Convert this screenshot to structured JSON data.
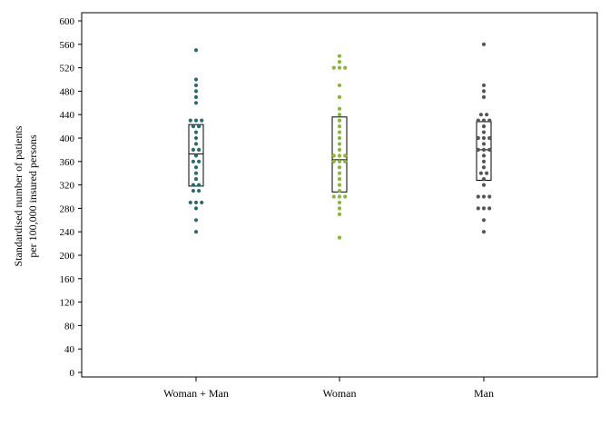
{
  "chart_data": {
    "type": "scatter",
    "subtype": "dot-plot-with-boxplot",
    "title": "",
    "xlabel": "",
    "ylabel_lines": [
      "Standardised number of patients",
      "per 100,000 insured persons"
    ],
    "ylim": [
      0,
      600
    ],
    "y_ticks": [
      0,
      40,
      80,
      120,
      160,
      200,
      240,
      280,
      320,
      360,
      400,
      440,
      480,
      520,
      560,
      600
    ],
    "grid": false,
    "categories": [
      "Woman + Man",
      "Woman",
      "Man"
    ],
    "series": [
      {
        "category": "Woman + Man",
        "color": "#2a6b71",
        "box": {
          "q1": 318,
          "median": 373,
          "q3": 423
        },
        "points": [
          550,
          500,
          490,
          480,
          470,
          460,
          430,
          430,
          430,
          420,
          420,
          410,
          400,
          390,
          380,
          380,
          370,
          360,
          360,
          350,
          340,
          330,
          320,
          320,
          310,
          310,
          290,
          290,
          290,
          280,
          260,
          240
        ]
      },
      {
        "category": "Woman",
        "color": "#86b832",
        "box": {
          "q1": 308,
          "median": 363,
          "q3": 436
        },
        "points": [
          540,
          530,
          520,
          520,
          520,
          490,
          470,
          450,
          440,
          430,
          420,
          410,
          400,
          390,
          380,
          370,
          370,
          370,
          360,
          360,
          360,
          350,
          340,
          330,
          320,
          310,
          300,
          300,
          300,
          290,
          280,
          270,
          230
        ]
      },
      {
        "category": "Man",
        "color": "#555555",
        "box": {
          "q1": 328,
          "median": 380,
          "q3": 428
        },
        "points": [
          560,
          490,
          480,
          470,
          440,
          440,
          430,
          430,
          430,
          420,
          410,
          400,
          400,
          400,
          390,
          380,
          380,
          380,
          370,
          360,
          350,
          340,
          340,
          330,
          320,
          300,
          300,
          300,
          280,
          280,
          280,
          260,
          240
        ]
      }
    ]
  }
}
